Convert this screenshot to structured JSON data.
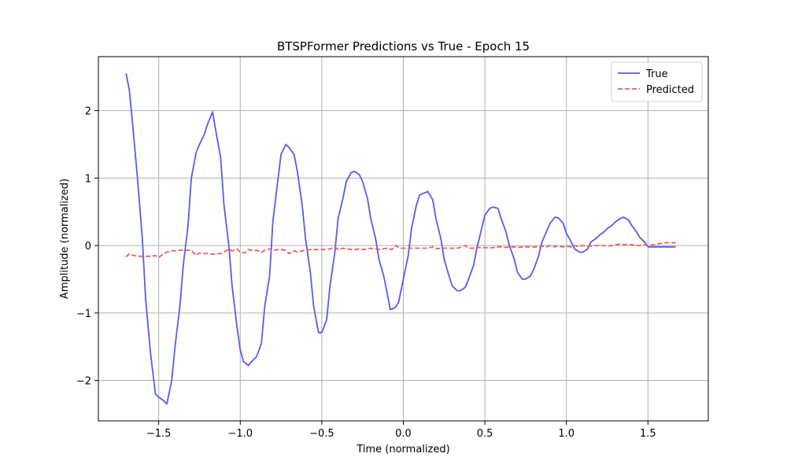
{
  "chart_data": {
    "type": "line",
    "title": "BTSPFormer Predictions vs True - Epoch 15",
    "xlabel": "Time (normalized)",
    "ylabel": "Amplitude (normalized)",
    "xlim": [
      -1.87,
      1.87
    ],
    "ylim": [
      -2.6,
      2.8
    ],
    "xticks": [
      -1.5,
      -1.0,
      -0.5,
      0.0,
      0.5,
      1.0,
      1.5
    ],
    "xtick_labels": [
      "−1.5",
      "−1.0",
      "−0.5",
      "0.0",
      "0.5",
      "1.0",
      "1.5"
    ],
    "yticks": [
      -2,
      -1,
      0,
      1,
      2
    ],
    "ytick_labels": [
      "−2",
      "−1",
      "0",
      "1",
      "2"
    ],
    "grid": true,
    "legend_position": "top-right",
    "series": [
      {
        "name": "True",
        "color": "#5a5af0",
        "style": "solid",
        "x": [
          -1.7,
          -1.68,
          -1.66,
          -1.63,
          -1.6,
          -1.58,
          -1.55,
          -1.52,
          -1.5,
          -1.47,
          -1.45,
          -1.42,
          -1.4,
          -1.37,
          -1.35,
          -1.32,
          -1.3,
          -1.27,
          -1.25,
          -1.22,
          -1.2,
          -1.17,
          -1.15,
          -1.12,
          -1.1,
          -1.07,
          -1.05,
          -1.02,
          -1.0,
          -0.98,
          -0.95,
          -0.93,
          -0.9,
          -0.87,
          -0.85,
          -0.82,
          -0.8,
          -0.77,
          -0.75,
          -0.72,
          -0.7,
          -0.67,
          -0.65,
          -0.62,
          -0.6,
          -0.57,
          -0.55,
          -0.52,
          -0.5,
          -0.47,
          -0.45,
          -0.42,
          -0.4,
          -0.37,
          -0.35,
          -0.32,
          -0.3,
          -0.27,
          -0.25,
          -0.22,
          -0.2,
          -0.17,
          -0.15,
          -0.12,
          -0.1,
          -0.08,
          -0.05,
          -0.03,
          0.0,
          0.03,
          0.05,
          0.08,
          0.1,
          0.13,
          0.15,
          0.18,
          0.2,
          0.23,
          0.25,
          0.28,
          0.3,
          0.33,
          0.35,
          0.38,
          0.4,
          0.43,
          0.45,
          0.48,
          0.5,
          0.53,
          0.55,
          0.58,
          0.6,
          0.63,
          0.65,
          0.68,
          0.7,
          0.73,
          0.75,
          0.78,
          0.8,
          0.83,
          0.85,
          0.88,
          0.9,
          0.93,
          0.95,
          0.98,
          1.0,
          1.03,
          1.05,
          1.08,
          1.1,
          1.13,
          1.15,
          1.18,
          1.2,
          1.23,
          1.25,
          1.28,
          1.3,
          1.33,
          1.35,
          1.38,
          1.4,
          1.43,
          1.45,
          1.48,
          1.5,
          1.53,
          1.55,
          1.58,
          1.6,
          1.63,
          1.65,
          1.67
        ],
        "y": [
          2.55,
          2.3,
          1.8,
          1.0,
          0.1,
          -0.8,
          -1.6,
          -2.2,
          -2.25,
          -2.3,
          -2.35,
          -2.0,
          -1.5,
          -0.9,
          -0.3,
          0.3,
          1.0,
          1.38,
          1.5,
          1.65,
          1.8,
          1.98,
          1.7,
          1.3,
          0.6,
          0.0,
          -0.6,
          -1.2,
          -1.55,
          -1.72,
          -1.78,
          -1.72,
          -1.65,
          -1.45,
          -0.9,
          -0.45,
          0.35,
          0.95,
          1.35,
          1.5,
          1.45,
          1.35,
          1.1,
          0.6,
          0.1,
          -0.4,
          -0.9,
          -1.29,
          -1.29,
          -1.1,
          -0.6,
          -0.1,
          0.4,
          0.7,
          0.95,
          1.08,
          1.1,
          1.05,
          0.95,
          0.7,
          0.4,
          0.1,
          -0.2,
          -0.45,
          -0.7,
          -0.95,
          -0.92,
          -0.85,
          -0.5,
          -0.15,
          0.25,
          0.6,
          0.75,
          0.78,
          0.8,
          0.68,
          0.4,
          0.1,
          -0.2,
          -0.45,
          -0.6,
          -0.67,
          -0.67,
          -0.62,
          -0.5,
          -0.3,
          -0.05,
          0.25,
          0.45,
          0.55,
          0.57,
          0.55,
          0.4,
          0.2,
          0.0,
          -0.2,
          -0.4,
          -0.5,
          -0.5,
          -0.45,
          -0.35,
          -0.15,
          0.05,
          0.22,
          0.33,
          0.42,
          0.41,
          0.33,
          0.18,
          0.05,
          -0.05,
          -0.1,
          -0.1,
          -0.05,
          0.05,
          0.1,
          0.15,
          0.2,
          0.25,
          0.3,
          0.35,
          0.4,
          0.42,
          0.38,
          0.3,
          0.2,
          0.12,
          0.05,
          -0.02,
          -0.02,
          -0.02,
          -0.02,
          -0.02,
          -0.02,
          -0.02,
          -0.02
        ],
        "y_note": ""
      },
      {
        "name": "Predicted",
        "color": "#f05a5a",
        "style": "dashed",
        "x": [
          -1.7,
          -1.68,
          -1.65,
          -1.62,
          -1.6,
          -1.57,
          -1.55,
          -1.52,
          -1.5,
          -1.47,
          -1.45,
          -1.42,
          -1.4,
          -1.37,
          -1.35,
          -1.32,
          -1.3,
          -1.27,
          -1.25,
          -1.22,
          -1.2,
          -1.17,
          -1.15,
          -1.12,
          -1.1,
          -1.07,
          -1.05,
          -1.02,
          -1.0,
          -0.97,
          -0.95,
          -0.92,
          -0.9,
          -0.87,
          -0.85,
          -0.82,
          -0.8,
          -0.77,
          -0.75,
          -0.72,
          -0.7,
          -0.67,
          -0.65,
          -0.62,
          -0.6,
          -0.57,
          -0.55,
          -0.52,
          -0.5,
          -0.47,
          -0.45,
          -0.42,
          -0.4,
          -0.37,
          -0.35,
          -0.32,
          -0.3,
          -0.27,
          -0.25,
          -0.22,
          -0.2,
          -0.17,
          -0.15,
          -0.12,
          -0.1,
          -0.07,
          -0.05,
          -0.02,
          0.0,
          0.03,
          0.05,
          0.08,
          0.1,
          0.13,
          0.15,
          0.18,
          0.2,
          0.23,
          0.25,
          0.28,
          0.3,
          0.33,
          0.35,
          0.38,
          0.4,
          0.43,
          0.45,
          0.48,
          0.5,
          0.53,
          0.55,
          0.58,
          0.6,
          0.63,
          0.65,
          0.68,
          0.7,
          0.73,
          0.75,
          0.78,
          0.8,
          0.83,
          0.85,
          0.88,
          0.9,
          0.93,
          0.95,
          0.98,
          1.0,
          1.03,
          1.05,
          1.08,
          1.1,
          1.13,
          1.15,
          1.18,
          1.2,
          1.23,
          1.25,
          1.28,
          1.3,
          1.33,
          1.35,
          1.38,
          1.4,
          1.43,
          1.45,
          1.48,
          1.5,
          1.53,
          1.55,
          1.58,
          1.6,
          1.63,
          1.65,
          1.67
        ],
        "y": [
          -0.17,
          -0.12,
          -0.15,
          -0.16,
          -0.16,
          -0.16,
          -0.16,
          -0.15,
          -0.18,
          -0.12,
          -0.1,
          -0.08,
          -0.08,
          -0.07,
          -0.07,
          -0.07,
          -0.07,
          -0.15,
          -0.11,
          -0.12,
          -0.12,
          -0.13,
          -0.12,
          -0.12,
          -0.1,
          -0.05,
          -0.08,
          -0.05,
          -0.1,
          -0.11,
          -0.06,
          -0.08,
          -0.07,
          -0.1,
          -0.07,
          -0.05,
          -0.08,
          -0.06,
          -0.06,
          -0.07,
          -0.12,
          -0.08,
          -0.1,
          -0.08,
          -0.07,
          -0.06,
          -0.06,
          -0.06,
          -0.06,
          -0.06,
          -0.05,
          -0.02,
          -0.06,
          -0.04,
          -0.05,
          -0.06,
          -0.06,
          -0.05,
          -0.06,
          -0.05,
          -0.04,
          -0.05,
          -0.06,
          -0.05,
          -0.04,
          -0.06,
          0.0,
          -0.04,
          -0.04,
          -0.04,
          -0.04,
          -0.04,
          -0.04,
          -0.04,
          -0.04,
          -0.02,
          -0.05,
          -0.04,
          -0.04,
          -0.04,
          -0.04,
          -0.04,
          -0.03,
          0.0,
          -0.04,
          -0.04,
          -0.02,
          -0.04,
          -0.03,
          -0.04,
          -0.03,
          -0.02,
          -0.02,
          -0.03,
          -0.02,
          -0.02,
          -0.03,
          -0.02,
          -0.02,
          -0.02,
          -0.02,
          -0.02,
          -0.01,
          -0.02,
          0.0,
          -0.02,
          -0.01,
          -0.02,
          -0.01,
          -0.02,
          0.0,
          -0.02,
          0.0,
          -0.01,
          -0.01,
          0.0,
          0.0,
          0.0,
          -0.01,
          0.0,
          0.01,
          0.02,
          0.01,
          0.02,
          0.01,
          0.0,
          0.0,
          0.01,
          0.0,
          0.01,
          0.02,
          0.03,
          0.04,
          0.04,
          0.04,
          0.04
        ],
        "y_note": ""
      }
    ]
  }
}
